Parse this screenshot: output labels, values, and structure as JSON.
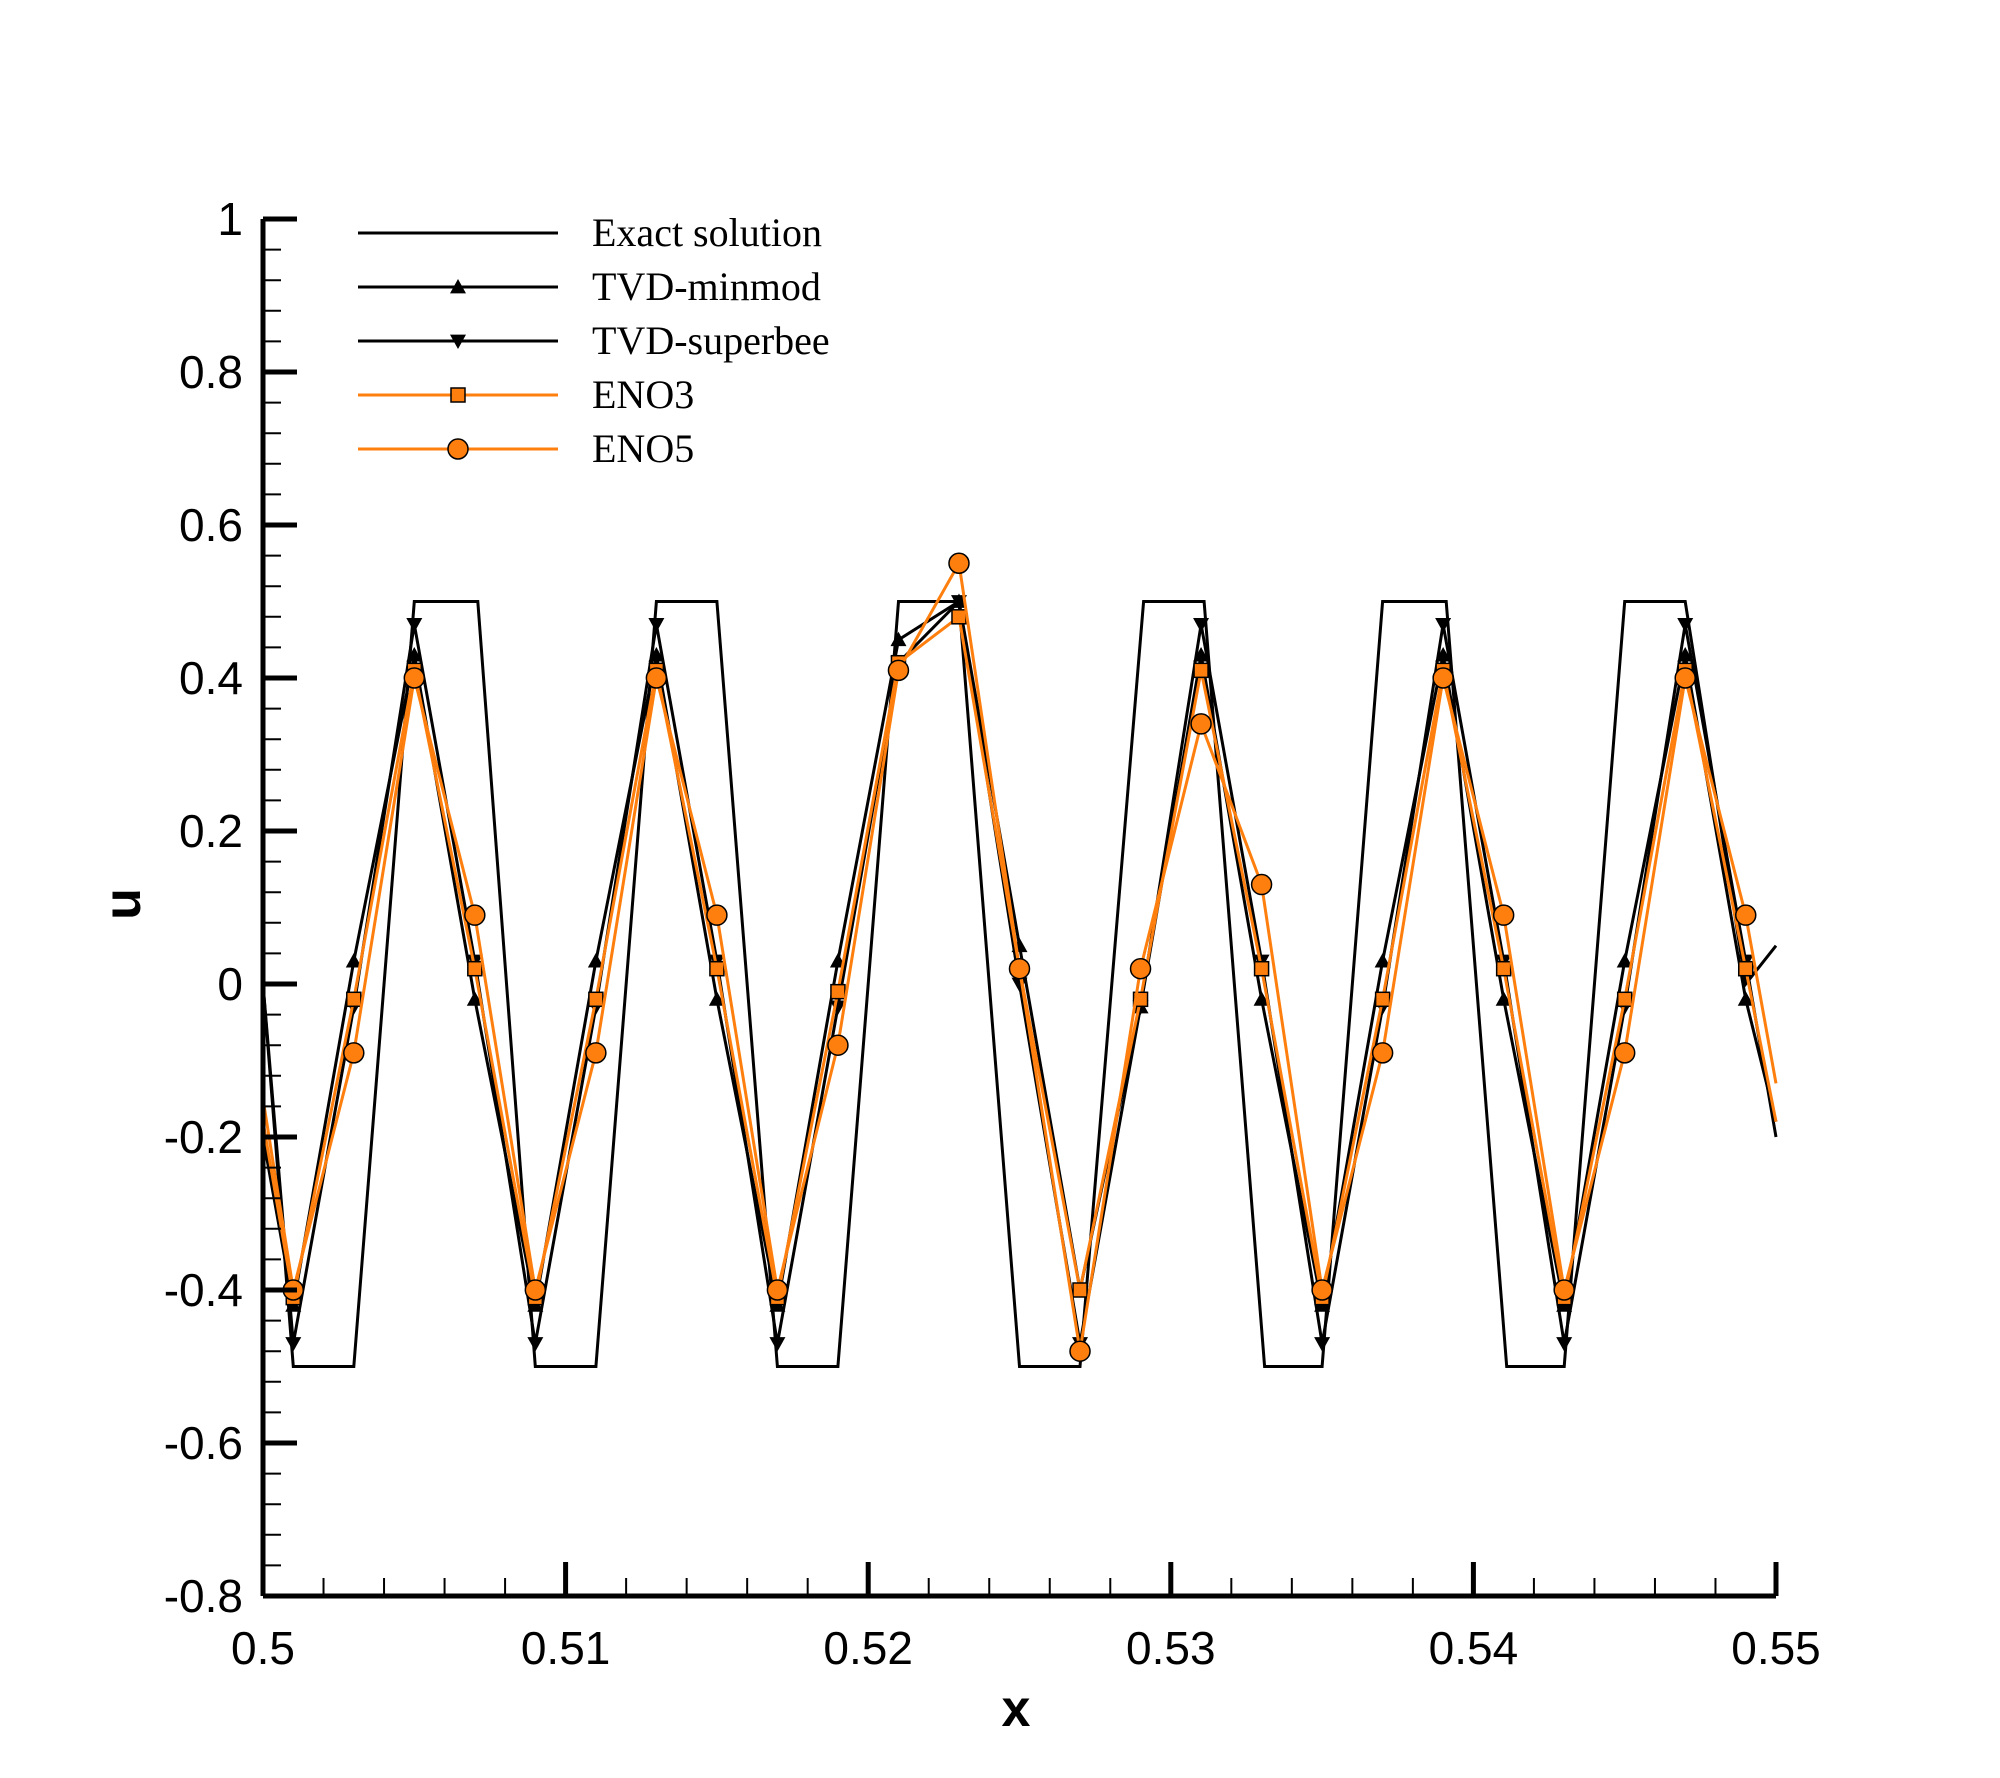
{
  "chart_data": {
    "type": "line",
    "title": "",
    "xlabel": "x",
    "ylabel": "u",
    "xlim": [
      0.5,
      0.55
    ],
    "ylim": [
      -0.8,
      1.0
    ],
    "xticks": [
      0.5,
      0.51,
      0.52,
      0.53,
      0.54,
      0.55
    ],
    "xtick_labels": [
      "0.5",
      "0.51",
      "0.52",
      "0.53",
      "0.54",
      "0.55"
    ],
    "yticks": [
      -0.8,
      -0.6,
      -0.4,
      -0.2,
      0,
      0.2,
      0.4,
      0.6,
      0.8,
      1.0
    ],
    "ytick_labels": [
      "-0.8",
      "-0.6",
      "-0.4",
      "-0.2",
      "0",
      "0.2",
      "0.4",
      "0.6",
      "0.8",
      "1"
    ],
    "grid": false,
    "legend_position": "top-left",
    "series": [
      {
        "name": "Exact solution",
        "color": "#000000",
        "marker": "none",
        "x": [
          0.5,
          0.501,
          0.503,
          0.505,
          0.5071,
          0.509,
          0.511,
          0.513,
          0.515,
          0.517,
          0.519,
          0.521,
          0.523,
          0.525,
          0.527,
          0.5291,
          0.5311,
          0.5331,
          0.535,
          0.537,
          0.5391,
          0.5411,
          0.543,
          0.545,
          0.547,
          0.549,
          0.55
        ],
        "y": [
          0.0,
          -0.5,
          -0.5,
          0.5,
          0.5,
          -0.5,
          -0.5,
          0.5,
          0.5,
          -0.5,
          -0.5,
          0.5,
          0.5,
          -0.5,
          -0.5,
          0.5,
          0.5,
          -0.5,
          -0.5,
          0.5,
          0.5,
          -0.5,
          -0.5,
          0.5,
          0.5,
          0.0,
          0.05
        ]
      },
      {
        "name": "TVD-minmod",
        "color": "#000000",
        "marker": "triangle-up",
        "x": [
          0.5,
          0.501,
          0.503,
          0.505,
          0.507,
          0.509,
          0.511,
          0.513,
          0.515,
          0.517,
          0.519,
          0.521,
          0.523,
          0.525,
          0.527,
          0.529,
          0.531,
          0.533,
          0.535,
          0.537,
          0.539,
          0.541,
          0.543,
          0.545,
          0.547,
          0.549,
          0.55
        ],
        "y": [
          -0.2,
          -0.42,
          0.03,
          0.43,
          -0.02,
          -0.42,
          0.03,
          0.43,
          -0.02,
          -0.42,
          0.03,
          0.45,
          0.5,
          0.05,
          -0.4,
          -0.03,
          0.43,
          -0.02,
          -0.42,
          0.03,
          0.43,
          -0.02,
          -0.42,
          0.03,
          0.43,
          -0.02,
          -0.18
        ]
      },
      {
        "name": "TVD-superbee",
        "color": "#000000",
        "marker": "triangle-down",
        "x": [
          0.5,
          0.501,
          0.503,
          0.505,
          0.507,
          0.509,
          0.511,
          0.513,
          0.515,
          0.517,
          0.519,
          0.521,
          0.523,
          0.525,
          0.527,
          0.529,
          0.531,
          0.533,
          0.535,
          0.537,
          0.539,
          0.541,
          0.543,
          0.545,
          0.547,
          0.549,
          0.55
        ],
        "y": [
          0.0,
          -0.47,
          -0.03,
          0.47,
          0.03,
          -0.47,
          -0.03,
          0.47,
          0.03,
          -0.47,
          -0.03,
          0.42,
          0.5,
          0.0,
          -0.47,
          -0.03,
          0.47,
          0.03,
          -0.47,
          -0.03,
          0.47,
          0.03,
          -0.47,
          -0.03,
          0.47,
          0.03,
          -0.2
        ]
      },
      {
        "name": "ENO3",
        "color": "#ff7f0e",
        "marker": "square",
        "x": [
          0.5,
          0.501,
          0.503,
          0.505,
          0.507,
          0.509,
          0.511,
          0.513,
          0.515,
          0.517,
          0.519,
          0.521,
          0.523,
          0.525,
          0.527,
          0.529,
          0.531,
          0.533,
          0.535,
          0.537,
          0.539,
          0.541,
          0.543,
          0.545,
          0.547,
          0.549,
          0.55
        ],
        "y": [
          -0.18,
          -0.41,
          -0.02,
          0.41,
          0.02,
          -0.41,
          -0.02,
          0.41,
          0.02,
          -0.41,
          -0.01,
          0.42,
          0.48,
          0.02,
          -0.4,
          -0.02,
          0.41,
          0.02,
          -0.41,
          -0.02,
          0.41,
          0.02,
          -0.41,
          -0.02,
          0.41,
          0.02,
          -0.18
        ]
      },
      {
        "name": "ENO5",
        "color": "#ff7f0e",
        "marker": "circle",
        "x": [
          0.5,
          0.501,
          0.503,
          0.505,
          0.507,
          0.509,
          0.511,
          0.513,
          0.515,
          0.517,
          0.519,
          0.521,
          0.523,
          0.525,
          0.527,
          0.529,
          0.531,
          0.533,
          0.535,
          0.537,
          0.539,
          0.541,
          0.543,
          0.545,
          0.547,
          0.549,
          0.55
        ],
        "y": [
          -0.15,
          -0.4,
          -0.09,
          0.4,
          0.09,
          -0.4,
          -0.09,
          0.4,
          0.09,
          -0.4,
          -0.08,
          0.41,
          0.55,
          0.02,
          -0.48,
          0.02,
          0.34,
          0.13,
          -0.4,
          -0.09,
          0.4,
          0.09,
          -0.4,
          -0.09,
          0.4,
          0.09,
          -0.13
        ]
      }
    ]
  }
}
